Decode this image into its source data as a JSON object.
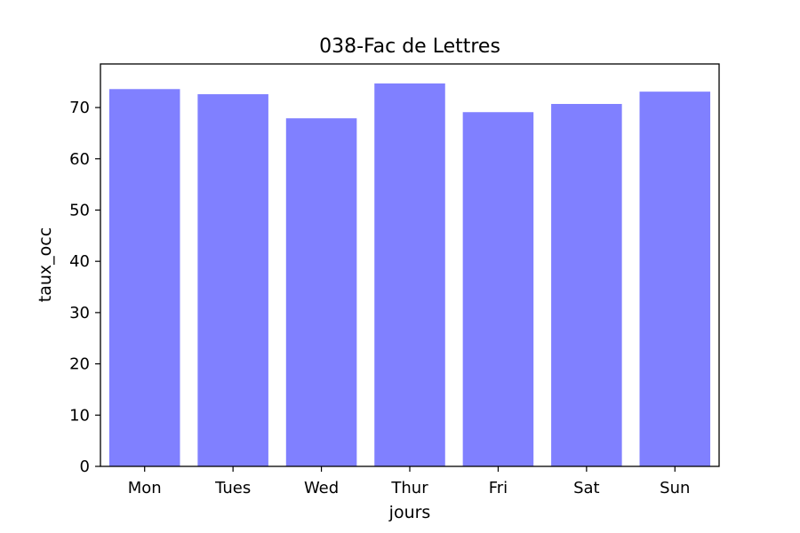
{
  "chart_data": {
    "type": "bar",
    "title": "038-Fac de Lettres",
    "xlabel": "jours",
    "ylabel": "taux_occ",
    "categories": [
      "Mon",
      "Tues",
      "Wed",
      "Thur",
      "Fri",
      "Sat",
      "Sun"
    ],
    "values": [
      73.6,
      72.6,
      67.9,
      74.7,
      69.1,
      70.7,
      73.1
    ],
    "ylim": [
      0,
      78.5
    ],
    "yticks": [
      0,
      10,
      20,
      30,
      40,
      50,
      60,
      70
    ],
    "bar_color": "#8080ff",
    "grid": false,
    "legend": "none"
  }
}
